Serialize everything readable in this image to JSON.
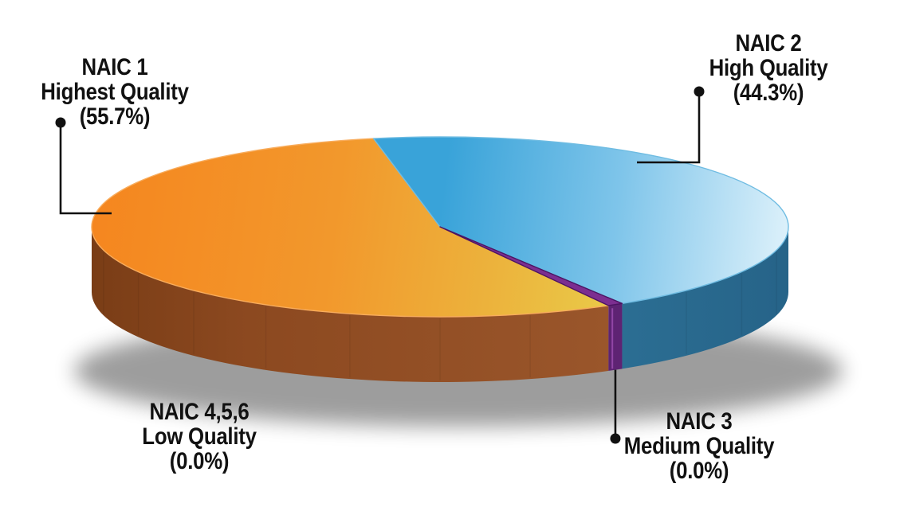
{
  "chart_data": {
    "type": "pie",
    "style": "3d",
    "title": "",
    "unit": "%",
    "legend": "callout-labels",
    "categories": [
      "NAIC 1",
      "NAIC 2",
      "NAIC 3",
      "NAIC 4,5,6"
    ],
    "values": [
      55.7,
      44.3,
      0.0,
      0.0
    ],
    "slices": [
      {
        "name": "NAIC 1",
        "quality": "Highest Quality",
        "value": 55.7,
        "pct_label": "(55.7%)",
        "color_top": "#F5861F",
        "color_top_end": "#E9CC49",
        "color_side": "#8F4B1F"
      },
      {
        "name": "NAIC 2",
        "quality": "High Quality",
        "value": 44.3,
        "pct_label": "(44.3%)",
        "color_top": "#39A3D9",
        "color_top_end": "#DFF2FB",
        "color_side": "#2E7296"
      },
      {
        "name": "NAIC 3",
        "quality": "Medium Quality",
        "value": 0.0,
        "pct_label": "(0.0%)",
        "color_top": "#7C2E90",
        "color_side": "#5E2373"
      },
      {
        "name": "NAIC 4,5,6",
        "quality": "Low Quality",
        "value": 0.0,
        "pct_label": "(0.0%)"
      }
    ],
    "callout_line_color": "#111111",
    "shadow_color": "#000000",
    "background": "#FFFFFF"
  }
}
